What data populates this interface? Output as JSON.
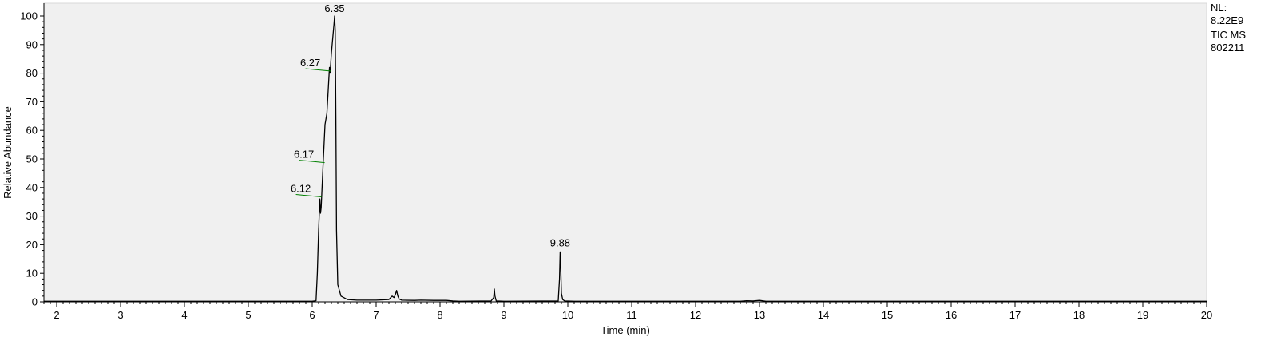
{
  "side_panel": {
    "nl_label": "NL:",
    "nl_value": "8.22E9",
    "trace_label": "TIC  MS",
    "sample_id": "802211"
  },
  "chart_data": {
    "type": "line",
    "xlabel": "Time (min)",
    "ylabel": "Relative Abundance",
    "xlim": [
      1.8,
      20
    ],
    "ylim": [
      0,
      100
    ],
    "x_ticks": [
      2,
      3,
      4,
      5,
      6,
      7,
      8,
      9,
      10,
      11,
      12,
      13,
      14,
      15,
      16,
      17,
      18,
      19,
      20
    ],
    "y_ticks": [
      0,
      10,
      20,
      30,
      40,
      50,
      60,
      70,
      80,
      90,
      100
    ],
    "grid": false,
    "plot_background": "#f0f0f0",
    "line_color": "#000000",
    "peak_label_color": "#008000",
    "series": [
      {
        "x": [
          1.8,
          6.0,
          6.06,
          6.08,
          6.1,
          6.12,
          6.13,
          6.14,
          6.15,
          6.17,
          6.2,
          6.23,
          6.25,
          6.27,
          6.28,
          6.3,
          6.32,
          6.34,
          6.35,
          6.36,
          6.37,
          6.38,
          6.4,
          6.45,
          6.55,
          6.7,
          7.0,
          7.2,
          7.25,
          7.28,
          7.3,
          7.32,
          7.34,
          7.36,
          7.4,
          7.6,
          7.7,
          7.9,
          8.1,
          8.2,
          8.3,
          8.8,
          8.84,
          8.85,
          8.86,
          8.88,
          9.0,
          9.85,
          9.87,
          9.88,
          9.89,
          9.9,
          9.92,
          9.95,
          10.1,
          12.7,
          12.8,
          12.9,
          13.0,
          13.1,
          20.0
        ],
        "y": [
          0.2,
          0.2,
          0.4,
          10,
          25,
          36,
          31,
          33,
          38,
          48,
          62,
          66,
          74,
          82,
          80,
          87,
          92,
          97,
          100,
          95,
          65,
          25,
          6,
          2,
          0.8,
          0.6,
          0.6,
          0.8,
          2,
          1.5,
          2.5,
          4,
          2,
          1,
          0.6,
          0.5,
          0.6,
          0.5,
          0.5,
          0.3,
          0.2,
          0.3,
          1.5,
          4.5,
          2,
          0.3,
          0.2,
          0.3,
          8,
          17.5,
          12,
          3,
          0.8,
          0.3,
          0.2,
          0.2,
          0.4,
          0.3,
          0.5,
          0.2,
          0.2
        ]
      }
    ],
    "peak_labels": [
      {
        "text": "6.35",
        "x": 6.35,
        "y": 100
      },
      {
        "text": "6.27",
        "x": 6.27,
        "y": 81
      },
      {
        "text": "6.17",
        "x": 6.17,
        "y": 49
      },
      {
        "text": "6.12",
        "x": 6.12,
        "y": 37
      },
      {
        "text": "9.88",
        "x": 9.88,
        "y": 17.5
      }
    ]
  }
}
